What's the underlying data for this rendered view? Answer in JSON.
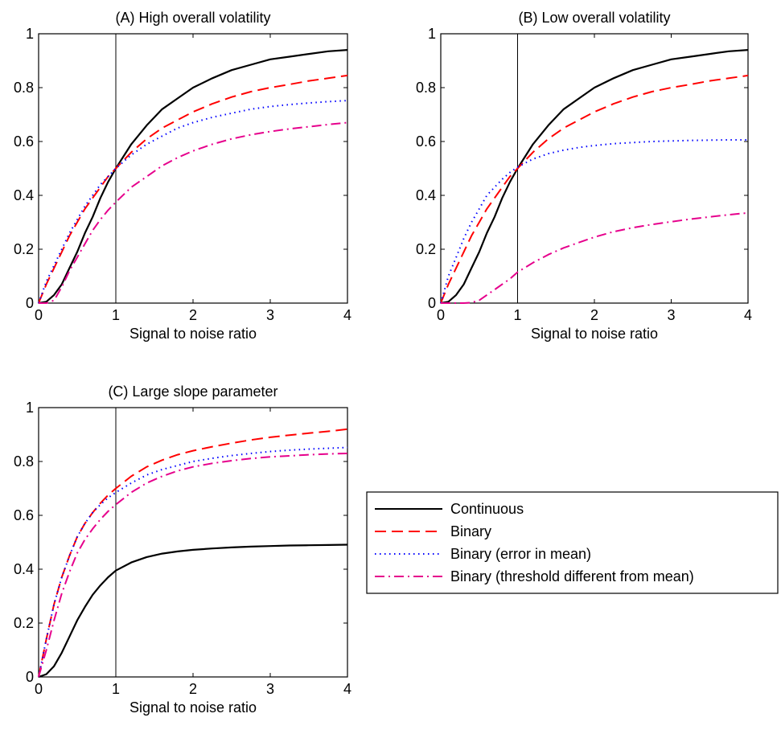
{
  "chart_data": [
    {
      "type": "line",
      "title": "(A) High overall volatility",
      "xlabel": "Signal to noise ratio",
      "ylabel": "",
      "xlim": [
        0,
        4
      ],
      "ylim": [
        0,
        1
      ],
      "xticks": [
        "0",
        "1",
        "2",
        "3",
        "4"
      ],
      "yticks": [
        "0",
        "0.2",
        "0.4",
        "0.6",
        "0.8",
        "1"
      ],
      "vline_x": 1,
      "series": [
        {
          "name": "Continuous",
          "color": "#000000",
          "style": "solid",
          "x": [
            0,
            0.1,
            0.2,
            0.3,
            0.4,
            0.5,
            0.6,
            0.7,
            0.8,
            0.9,
            1.0,
            1.2,
            1.4,
            1.6,
            1.8,
            2.0,
            2.25,
            2.5,
            2.75,
            3.0,
            3.25,
            3.5,
            3.75,
            4.0
          ],
          "y": [
            0,
            0.005,
            0.03,
            0.07,
            0.13,
            0.19,
            0.26,
            0.32,
            0.39,
            0.45,
            0.5,
            0.59,
            0.66,
            0.72,
            0.76,
            0.8,
            0.835,
            0.865,
            0.885,
            0.905,
            0.915,
            0.925,
            0.935,
            0.94
          ]
        },
        {
          "name": "Binary",
          "color": "#ff0000",
          "style": "dashed",
          "x": [
            0,
            0.1,
            0.2,
            0.3,
            0.4,
            0.5,
            0.6,
            0.7,
            0.8,
            0.9,
            1.0,
            1.2,
            1.4,
            1.6,
            1.8,
            2.0,
            2.25,
            2.5,
            2.75,
            3.0,
            3.25,
            3.5,
            3.75,
            4.0
          ],
          "y": [
            0,
            0.07,
            0.13,
            0.19,
            0.25,
            0.3,
            0.35,
            0.39,
            0.43,
            0.47,
            0.5,
            0.56,
            0.61,
            0.65,
            0.68,
            0.71,
            0.74,
            0.765,
            0.785,
            0.8,
            0.812,
            0.825,
            0.835,
            0.845
          ]
        },
        {
          "name": "Binary (error in mean)",
          "color": "#0000ff",
          "style": "dotted",
          "x": [
            0,
            0.1,
            0.2,
            0.3,
            0.4,
            0.5,
            0.6,
            0.7,
            0.8,
            0.9,
            1.0,
            1.2,
            1.4,
            1.6,
            1.8,
            2.0,
            2.25,
            2.5,
            2.75,
            3.0,
            3.25,
            3.5,
            3.75,
            4.0
          ],
          "y": [
            0,
            0.08,
            0.14,
            0.2,
            0.26,
            0.31,
            0.36,
            0.4,
            0.44,
            0.47,
            0.5,
            0.55,
            0.59,
            0.62,
            0.65,
            0.67,
            0.69,
            0.705,
            0.72,
            0.73,
            0.737,
            0.743,
            0.748,
            0.752
          ]
        },
        {
          "name": "Binary (threshold different from mean)",
          "color": "#e6008c",
          "style": "dashdot",
          "x": [
            0,
            0.1,
            0.2,
            0.3,
            0.4,
            0.5,
            0.6,
            0.7,
            0.8,
            0.9,
            1.0,
            1.2,
            1.4,
            1.6,
            1.8,
            2.0,
            2.25,
            2.5,
            2.75,
            3.0,
            3.25,
            3.5,
            3.75,
            4.0
          ],
          "y": [
            0,
            0.0,
            0.01,
            0.06,
            0.12,
            0.17,
            0.22,
            0.27,
            0.31,
            0.345,
            0.375,
            0.43,
            0.47,
            0.51,
            0.54,
            0.565,
            0.59,
            0.61,
            0.625,
            0.637,
            0.647,
            0.655,
            0.663,
            0.67
          ]
        }
      ]
    },
    {
      "type": "line",
      "title": "(B) Low overall volatility",
      "xlabel": "Signal to noise ratio",
      "ylabel": "",
      "xlim": [
        0,
        4
      ],
      "ylim": [
        0,
        1
      ],
      "xticks": [
        "0",
        "1",
        "2",
        "3",
        "4"
      ],
      "yticks": [
        "0",
        "0.2",
        "0.4",
        "0.6",
        "0.8",
        "1"
      ],
      "vline_x": 1,
      "series": [
        {
          "name": "Continuous",
          "color": "#000000",
          "style": "solid",
          "x": [
            0,
            0.1,
            0.2,
            0.3,
            0.4,
            0.5,
            0.6,
            0.7,
            0.8,
            0.9,
            1.0,
            1.2,
            1.4,
            1.6,
            1.8,
            2.0,
            2.25,
            2.5,
            2.75,
            3.0,
            3.25,
            3.5,
            3.75,
            4.0
          ],
          "y": [
            0,
            0.005,
            0.03,
            0.07,
            0.13,
            0.19,
            0.26,
            0.32,
            0.39,
            0.45,
            0.5,
            0.59,
            0.66,
            0.72,
            0.76,
            0.8,
            0.835,
            0.865,
            0.885,
            0.905,
            0.915,
            0.925,
            0.935,
            0.94
          ]
        },
        {
          "name": "Binary",
          "color": "#ff0000",
          "style": "dashed",
          "x": [
            0,
            0.1,
            0.2,
            0.3,
            0.4,
            0.5,
            0.6,
            0.7,
            0.8,
            0.9,
            1.0,
            1.2,
            1.4,
            1.6,
            1.8,
            2.0,
            2.25,
            2.5,
            2.75,
            3.0,
            3.25,
            3.5,
            3.75,
            4.0
          ],
          "y": [
            0,
            0.07,
            0.13,
            0.19,
            0.25,
            0.3,
            0.35,
            0.39,
            0.43,
            0.47,
            0.5,
            0.56,
            0.61,
            0.65,
            0.68,
            0.71,
            0.74,
            0.765,
            0.785,
            0.8,
            0.812,
            0.825,
            0.835,
            0.845
          ]
        },
        {
          "name": "Binary (error in mean)",
          "color": "#0000ff",
          "style": "dotted",
          "x": [
            0,
            0.1,
            0.2,
            0.3,
            0.4,
            0.5,
            0.6,
            0.7,
            0.8,
            0.9,
            1.0,
            1.2,
            1.4,
            1.6,
            1.8,
            2.0,
            2.25,
            2.5,
            2.75,
            3.0,
            3.25,
            3.5,
            3.75,
            4.0
          ],
          "y": [
            0,
            0.1,
            0.17,
            0.24,
            0.3,
            0.35,
            0.4,
            0.43,
            0.46,
            0.485,
            0.505,
            0.535,
            0.555,
            0.568,
            0.578,
            0.585,
            0.592,
            0.596,
            0.6,
            0.602,
            0.604,
            0.605,
            0.606,
            0.606
          ]
        },
        {
          "name": "Binary (threshold different from mean)",
          "color": "#e6008c",
          "style": "dashdot",
          "x": [
            0,
            0.1,
            0.2,
            0.3,
            0.4,
            0.5,
            0.6,
            0.7,
            0.8,
            0.9,
            1.0,
            1.2,
            1.4,
            1.6,
            1.8,
            2.0,
            2.25,
            2.5,
            2.75,
            3.0,
            3.25,
            3.5,
            3.75,
            4.0
          ],
          "y": [
            0,
            0,
            0,
            0,
            0.002,
            0.01,
            0.03,
            0.05,
            0.07,
            0.09,
            0.115,
            0.15,
            0.18,
            0.205,
            0.225,
            0.245,
            0.265,
            0.28,
            0.292,
            0.302,
            0.312,
            0.32,
            0.328,
            0.335
          ]
        }
      ]
    },
    {
      "type": "line",
      "title": "(C) Large slope parameter",
      "xlabel": "Signal to noise ratio",
      "ylabel": "",
      "xlim": [
        0,
        4
      ],
      "ylim": [
        0,
        1
      ],
      "xticks": [
        "0",
        "1",
        "2",
        "3",
        "4"
      ],
      "yticks": [
        "0",
        "0.2",
        "0.4",
        "0.6",
        "0.8",
        "1"
      ],
      "vline_x": 1,
      "series": [
        {
          "name": "Continuous",
          "color": "#000000",
          "style": "solid",
          "x": [
            0,
            0.1,
            0.2,
            0.3,
            0.4,
            0.5,
            0.6,
            0.7,
            0.8,
            0.9,
            1.0,
            1.2,
            1.4,
            1.6,
            1.8,
            2.0,
            2.25,
            2.5,
            2.75,
            3.0,
            3.25,
            3.5,
            3.75,
            4.0
          ],
          "y": [
            0,
            0.01,
            0.04,
            0.09,
            0.15,
            0.21,
            0.26,
            0.305,
            0.34,
            0.37,
            0.395,
            0.425,
            0.445,
            0.458,
            0.466,
            0.472,
            0.477,
            0.481,
            0.484,
            0.486,
            0.488,
            0.489,
            0.49,
            0.491
          ]
        },
        {
          "name": "Binary",
          "color": "#ff0000",
          "style": "dashed",
          "x": [
            0,
            0.1,
            0.2,
            0.3,
            0.4,
            0.5,
            0.6,
            0.7,
            0.8,
            0.9,
            1.0,
            1.2,
            1.4,
            1.6,
            1.8,
            2.0,
            2.25,
            2.5,
            2.75,
            3.0,
            3.25,
            3.5,
            3.75,
            4.0
          ],
          "y": [
            0,
            0.14,
            0.27,
            0.37,
            0.45,
            0.52,
            0.57,
            0.61,
            0.645,
            0.675,
            0.7,
            0.745,
            0.78,
            0.805,
            0.825,
            0.84,
            0.855,
            0.868,
            0.88,
            0.89,
            0.898,
            0.905,
            0.912,
            0.92
          ]
        },
        {
          "name": "Binary (error in mean)",
          "color": "#0000ff",
          "style": "dotted",
          "x": [
            0,
            0.1,
            0.2,
            0.3,
            0.4,
            0.5,
            0.6,
            0.7,
            0.8,
            0.9,
            1.0,
            1.2,
            1.4,
            1.6,
            1.8,
            2.0,
            2.25,
            2.5,
            2.75,
            3.0,
            3.25,
            3.5,
            3.75,
            4.0
          ],
          "y": [
            0,
            0.14,
            0.27,
            0.37,
            0.45,
            0.52,
            0.57,
            0.61,
            0.64,
            0.665,
            0.685,
            0.72,
            0.75,
            0.77,
            0.785,
            0.8,
            0.812,
            0.822,
            0.83,
            0.837,
            0.842,
            0.846,
            0.849,
            0.852
          ]
        },
        {
          "name": "Binary (threshold different from mean)",
          "color": "#e6008c",
          "style": "dashdot",
          "x": [
            0,
            0.1,
            0.2,
            0.3,
            0.4,
            0.5,
            0.6,
            0.7,
            0.8,
            0.9,
            1.0,
            1.2,
            1.4,
            1.6,
            1.8,
            2.0,
            2.25,
            2.5,
            2.75,
            3.0,
            3.25,
            3.5,
            3.75,
            4.0
          ],
          "y": [
            0,
            0.1,
            0.21,
            0.31,
            0.39,
            0.46,
            0.51,
            0.55,
            0.585,
            0.615,
            0.64,
            0.685,
            0.72,
            0.745,
            0.765,
            0.78,
            0.793,
            0.803,
            0.811,
            0.817,
            0.821,
            0.825,
            0.828,
            0.83
          ]
        }
      ]
    }
  ],
  "legend": {
    "placement": "right of panel C",
    "entries": [
      {
        "label": "Continuous",
        "color": "#000000",
        "style": "solid"
      },
      {
        "label": "Binary",
        "color": "#ff0000",
        "style": "dashed"
      },
      {
        "label": "Binary (error in mean)",
        "color": "#0000ff",
        "style": "dotted"
      },
      {
        "label": "Binary (threshold different from mean)",
        "color": "#e6008c",
        "style": "dashdot"
      }
    ]
  }
}
